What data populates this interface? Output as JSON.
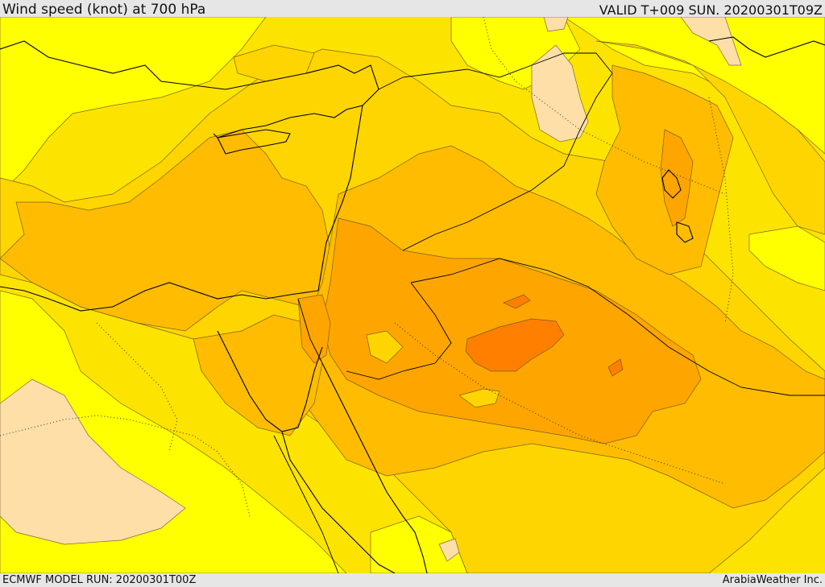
{
  "header": {
    "title": "Wind speed (knot) at 700 hPa",
    "valid": "VALID T+009 SUN. 20200301T09Z"
  },
  "footer": {
    "model_run": "ECMWF MODEL RUN: 20200301T00Z",
    "credit": "ArabiaWeather Inc."
  },
  "map": {
    "fill_colors": {
      "background": "#fde300",
      "yellow": "#ffff00",
      "light_orange": "#ffd500",
      "mid_orange": "#ffbc00",
      "orange": "#ffa500",
      "dark_orange": "#ff8000",
      "pale": "#ffdfa8"
    }
  }
}
